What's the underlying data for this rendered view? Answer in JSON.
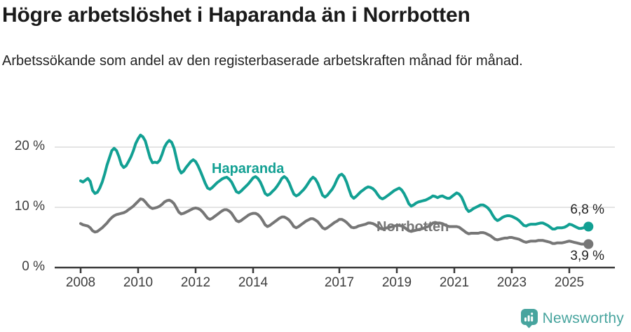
{
  "header": {
    "title": "Högre arbetslöshet i Haparanda än i Norrbotten",
    "subtitle": "Arbetssökande som andel av den registerbaserade arbetskraften månad för månad."
  },
  "chart_data": {
    "type": "line",
    "unit": "%",
    "x_unit": "month",
    "x_start": "2008-01",
    "x_end": "2025-09",
    "ylim": [
      0,
      23
    ],
    "grid": "horizontal",
    "legend_position": "inline-labels",
    "y_tick_labels": [
      "20 %",
      "10 %",
      "0 %"
    ],
    "y_tick_values": [
      20,
      10,
      0
    ],
    "x_tick_labels": [
      "2008",
      "2010",
      "2012",
      "2014",
      "2017",
      "2019",
      "2021",
      "2023",
      "2025"
    ],
    "series": [
      {
        "name": "Haparanda",
        "color": "#12a093",
        "end_label": "6,8 %",
        "end_value": 6.8,
        "values": [
          14.4,
          14.2,
          14.5,
          14.8,
          14.3,
          12.8,
          12.3,
          12.5,
          13.2,
          14.2,
          15.5,
          17.0,
          18.2,
          19.4,
          19.8,
          19.4,
          18.4,
          17.1,
          16.6,
          16.9,
          17.6,
          18.4,
          19.4,
          20.6,
          21.4,
          22.0,
          21.7,
          21.0,
          19.6,
          18.2,
          17.4,
          17.5,
          17.4,
          17.8,
          18.8,
          20.0,
          20.7,
          21.1,
          20.8,
          19.8,
          18.1,
          16.4,
          15.7,
          16.0,
          16.6,
          17.1,
          17.6,
          17.9,
          17.6,
          16.9,
          16.0,
          15.0,
          14.0,
          13.2,
          13.0,
          13.3,
          13.7,
          14.1,
          14.4,
          14.7,
          14.9,
          15.0,
          14.7,
          14.2,
          13.4,
          12.6,
          12.4,
          12.7,
          13.1,
          13.5,
          13.9,
          14.4,
          14.9,
          15.1,
          14.8,
          14.2,
          13.3,
          12.3,
          12.0,
          12.2,
          12.6,
          13.0,
          13.5,
          14.1,
          14.8,
          15.1,
          14.8,
          14.1,
          13.1,
          12.2,
          11.9,
          12.1,
          12.5,
          12.9,
          13.4,
          14.0,
          14.6,
          15.0,
          14.7,
          14.0,
          13.0,
          12.0,
          11.7,
          12.0,
          12.5,
          13.0,
          13.7,
          14.6,
          15.3,
          15.5,
          15.1,
          14.2,
          13.0,
          11.9,
          11.5,
          11.8,
          12.2,
          12.6,
          12.9,
          13.2,
          13.4,
          13.3,
          13.1,
          12.7,
          12.1,
          11.6,
          11.4,
          11.6,
          11.9,
          12.2,
          12.5,
          12.8,
          13.0,
          13.2,
          12.9,
          12.3,
          11.5,
          10.6,
          10.2,
          10.4,
          10.7,
          10.9,
          11.0,
          11.1,
          11.2,
          11.4,
          11.6,
          11.9,
          11.8,
          11.6,
          11.8,
          11.9,
          11.7,
          11.5,
          11.5,
          11.8,
          12.1,
          12.4,
          12.2,
          11.7,
          10.8,
          9.8,
          9.3,
          9.5,
          9.8,
          10.0,
          10.2,
          10.4,
          10.4,
          10.2,
          9.9,
          9.4,
          8.7,
          8.1,
          7.8,
          8.0,
          8.3,
          8.5,
          8.6,
          8.6,
          8.5,
          8.3,
          8.1,
          7.8,
          7.4,
          7.0,
          6.9,
          7.1,
          7.2,
          7.2,
          7.2,
          7.3,
          7.4,
          7.4,
          7.2,
          7.0,
          6.7,
          6.4,
          6.4,
          6.6,
          6.6,
          6.6,
          6.7,
          6.9,
          7.2,
          7.1,
          6.9,
          6.7,
          6.5,
          6.5,
          6.6,
          6.7,
          6.8
        ]
      },
      {
        "name": "Norrbotten",
        "color": "#767676",
        "end_label": "3,9 %",
        "end_value": 3.9,
        "values": [
          7.3,
          7.1,
          7.0,
          6.9,
          6.6,
          6.1,
          5.9,
          6.0,
          6.3,
          6.6,
          7.0,
          7.4,
          7.9,
          8.3,
          8.6,
          8.8,
          8.9,
          9.0,
          9.1,
          9.3,
          9.6,
          9.9,
          10.2,
          10.6,
          11.0,
          11.4,
          11.3,
          10.9,
          10.4,
          10.0,
          9.8,
          9.9,
          10.0,
          10.2,
          10.5,
          10.9,
          11.1,
          11.2,
          11.0,
          10.6,
          9.9,
          9.2,
          8.9,
          9.0,
          9.2,
          9.4,
          9.6,
          9.8,
          9.9,
          9.8,
          9.6,
          9.2,
          8.7,
          8.2,
          8.0,
          8.2,
          8.5,
          8.8,
          9.1,
          9.4,
          9.6,
          9.6,
          9.4,
          9.0,
          8.4,
          7.8,
          7.6,
          7.8,
          8.1,
          8.4,
          8.7,
          8.9,
          9.0,
          9.0,
          8.8,
          8.4,
          7.8,
          7.1,
          6.8,
          7.0,
          7.3,
          7.6,
          7.9,
          8.2,
          8.4,
          8.4,
          8.2,
          7.9,
          7.4,
          6.8,
          6.6,
          6.8,
          7.1,
          7.4,
          7.7,
          7.9,
          8.1,
          8.1,
          7.9,
          7.6,
          7.1,
          6.6,
          6.4,
          6.6,
          6.9,
          7.2,
          7.5,
          7.7,
          8.0,
          8.0,
          7.8,
          7.5,
          7.1,
          6.7,
          6.6,
          6.7,
          6.9,
          7.0,
          7.1,
          7.2,
          7.4,
          7.4,
          7.3,
          7.1,
          6.8,
          6.5,
          6.4,
          6.5,
          6.6,
          6.7,
          6.8,
          6.9,
          7.0,
          7.0,
          6.9,
          6.7,
          6.4,
          6.1,
          6.0,
          6.1,
          6.2,
          6.3,
          6.4,
          6.5,
          6.7,
          6.8,
          7.0,
          7.4,
          7.5,
          7.4,
          7.4,
          7.3,
          7.1,
          6.9,
          6.8,
          6.8,
          6.8,
          6.8,
          6.7,
          6.4,
          6.1,
          5.8,
          5.6,
          5.7,
          5.7,
          5.7,
          5.7,
          5.8,
          5.8,
          5.7,
          5.5,
          5.3,
          5.0,
          4.7,
          4.6,
          4.7,
          4.8,
          4.9,
          4.9,
          5.0,
          5.0,
          4.9,
          4.8,
          4.7,
          4.5,
          4.3,
          4.2,
          4.3,
          4.4,
          4.4,
          4.4,
          4.5,
          4.5,
          4.5,
          4.4,
          4.3,
          4.2,
          4.0,
          4.0,
          4.1,
          4.1,
          4.1,
          4.2,
          4.3,
          4.4,
          4.3,
          4.2,
          4.1,
          4.0,
          3.9,
          3.9,
          3.9,
          3.9
        ]
      }
    ],
    "colors": {
      "gridline": "#dcdcdc",
      "axis": "#3a3a3a",
      "haparanda": "#12a093",
      "norrbotten": "#767676"
    }
  },
  "footer": {
    "brand": "Newsworthy",
    "brand_color": "#47a49e",
    "logo_icon": "newsworthy-chart-pin-icon"
  }
}
